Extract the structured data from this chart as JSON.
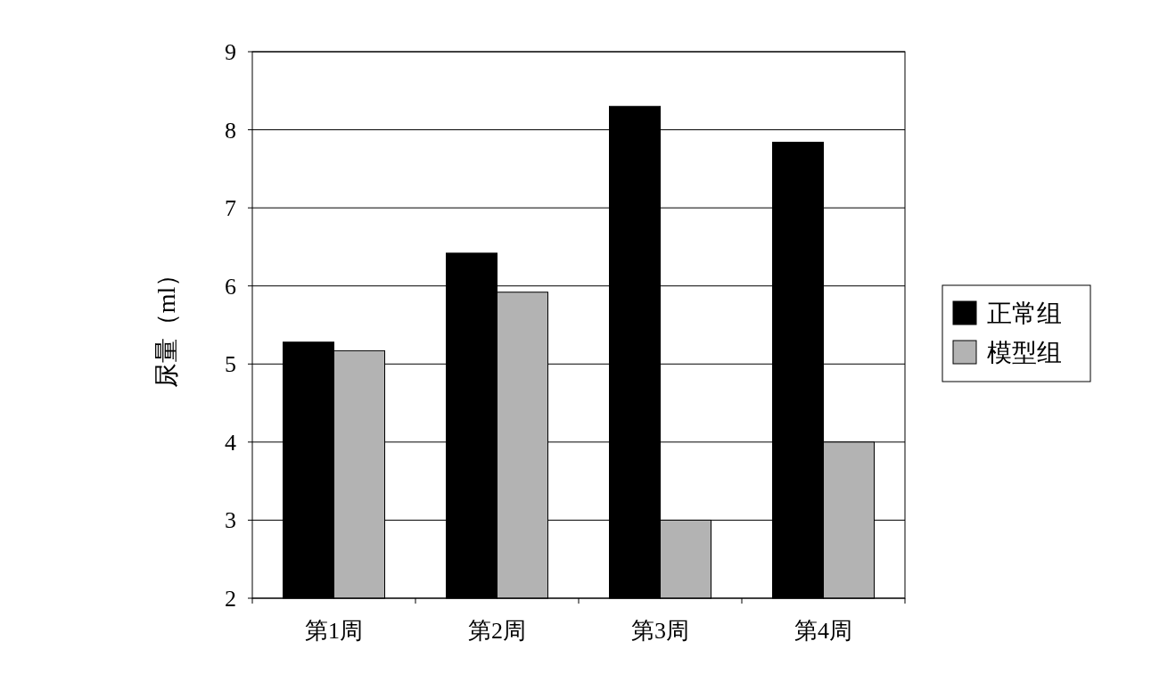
{
  "chart_data": {
    "type": "bar",
    "ylabel": "尿量（ml）",
    "categories": [
      "第1周",
      "第2周",
      "第3周",
      "第4周"
    ],
    "series": [
      {
        "name": "正常组",
        "color": "#000000",
        "values": [
          5.28,
          6.42,
          8.3,
          7.84
        ]
      },
      {
        "name": "模型组",
        "color": "#b3b3b3",
        "values": [
          5.17,
          5.92,
          3.0,
          4.0
        ]
      }
    ],
    "ylim": [
      2,
      9
    ],
    "yticks": [
      2,
      3,
      4,
      5,
      6,
      7,
      8,
      9
    ],
    "grid": "y",
    "legend": "right"
  }
}
